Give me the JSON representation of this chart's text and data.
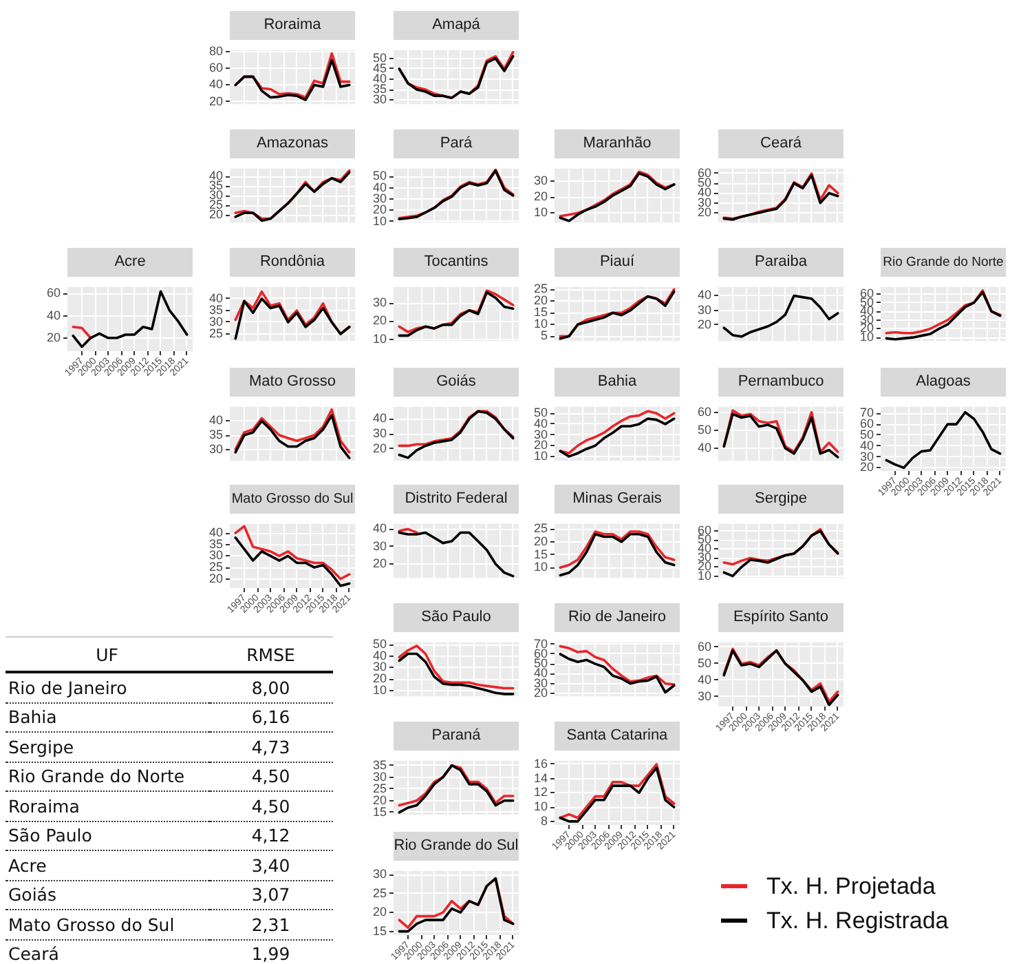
{
  "chart_data": [
    {
      "type": "line",
      "title": "Roraima",
      "x": [
        1995,
        1997,
        1999,
        2001,
        2003,
        2005,
        2007,
        2009,
        2011,
        2013,
        2015,
        2017,
        2019,
        2021
      ],
      "xlim": [
        1993.7,
        2022.3
      ],
      "xticks": [
        1997,
        2000,
        2003,
        2006,
        2009,
        2012,
        2015,
        2018,
        2021
      ],
      "ylim": [
        17,
        82
      ],
      "yticks": [
        20,
        40,
        60,
        80
      ],
      "grid": true,
      "tick_labels": "y",
      "series": [
        {
          "color": "#e8262a",
          "values": [
            40,
            50,
            50,
            36,
            35,
            29,
            30,
            29,
            25,
            45,
            42,
            78,
            44,
            44
          ]
        },
        {
          "color": "#000000",
          "values": [
            40,
            50,
            50,
            33,
            25,
            26,
            28,
            27,
            22,
            40,
            38,
            70,
            38,
            40
          ]
        }
      ]
    },
    {
      "type": "line",
      "title": "Amapá",
      "x": [
        1995,
        1997,
        1999,
        2001,
        2003,
        2005,
        2007,
        2009,
        2011,
        2013,
        2015,
        2017,
        2019,
        2021
      ],
      "xlim": [
        1993.7,
        2022.3
      ],
      "xticks": [
        1997,
        2000,
        2003,
        2006,
        2009,
        2012,
        2015,
        2018,
        2021
      ],
      "ylim": [
        28,
        54
      ],
      "yticks": [
        30,
        35,
        40,
        45,
        50
      ],
      "grid": true,
      "tick_labels": "y",
      "series": [
        {
          "color": "#e8262a",
          "values": [
            45,
            38,
            36,
            35,
            33,
            32,
            31,
            34,
            33,
            37,
            49,
            51,
            45,
            53
          ]
        },
        {
          "color": "#000000",
          "values": [
            45,
            38,
            35,
            34,
            32,
            32,
            31,
            34,
            33,
            36,
            48,
            50,
            44,
            51
          ]
        }
      ]
    },
    {
      "type": "line",
      "title": "Amazonas",
      "x": [
        1995,
        1997,
        1999,
        2001,
        2003,
        2005,
        2007,
        2009,
        2011,
        2013,
        2015,
        2017,
        2019,
        2021
      ],
      "xlim": [
        1993.7,
        2022.3
      ],
      "xticks": [
        1997,
        2000,
        2003,
        2006,
        2009,
        2012,
        2015,
        2018,
        2021
      ],
      "ylim": [
        16,
        44
      ],
      "yticks": [
        20,
        25,
        30,
        35,
        40
      ],
      "grid": true,
      "tick_labels": "y",
      "series": [
        {
          "color": "#e8262a",
          "values": [
            21,
            22,
            21,
            18,
            18,
            22,
            26,
            31,
            37,
            32,
            37,
            39,
            38,
            43
          ]
        },
        {
          "color": "#000000",
          "values": [
            19,
            21,
            21,
            17,
            18,
            22,
            26,
            31,
            36,
            32,
            36,
            39,
            37,
            42
          ]
        }
      ]
    },
    {
      "type": "line",
      "title": "Pará",
      "x": [
        1995,
        1997,
        1999,
        2001,
        2003,
        2005,
        2007,
        2009,
        2011,
        2013,
        2015,
        2017,
        2019,
        2021
      ],
      "xlim": [
        1993.7,
        2022.3
      ],
      "xticks": [
        1997,
        2000,
        2003,
        2006,
        2009,
        2012,
        2015,
        2018,
        2021
      ],
      "ylim": [
        9,
        57
      ],
      "yticks": [
        10,
        20,
        30,
        40,
        50
      ],
      "grid": true,
      "tick_labels": "y",
      "series": [
        {
          "color": "#e8262a",
          "values": [
            13,
            14,
            15,
            18,
            22,
            29,
            33,
            41,
            45,
            43,
            45,
            56,
            40,
            34
          ]
        },
        {
          "color": "#000000",
          "values": [
            12,
            13,
            14,
            18,
            22,
            28,
            32,
            40,
            44,
            42,
            44,
            55,
            38,
            33
          ]
        }
      ]
    },
    {
      "type": "line",
      "title": "Maranhão",
      "x": [
        1995,
        1997,
        1999,
        2001,
        2003,
        2005,
        2007,
        2009,
        2011,
        2013,
        2015,
        2017,
        2019,
        2021
      ],
      "xlim": [
        1993.7,
        2022.3
      ],
      "xticks": [
        1997,
        2000,
        2003,
        2006,
        2009,
        2012,
        2015,
        2018,
        2021
      ],
      "ylim": [
        4,
        38
      ],
      "yticks": [
        10,
        20,
        30
      ],
      "grid": true,
      "tick_labels": "y",
      "series": [
        {
          "color": "#e8262a",
          "values": [
            8,
            9,
            10,
            12,
            15,
            18,
            22,
            25,
            28,
            36,
            34,
            29,
            26,
            28
          ]
        },
        {
          "color": "#000000",
          "values": [
            7,
            5,
            9,
            12,
            14,
            17,
            21,
            24,
            27,
            35,
            33,
            28,
            25,
            28
          ]
        }
      ]
    },
    {
      "type": "line",
      "title": "Ceará",
      "x": [
        1995,
        1997,
        1999,
        2001,
        2003,
        2005,
        2007,
        2009,
        2011,
        2013,
        2015,
        2017,
        2019,
        2021
      ],
      "xlim": [
        1993.7,
        2022.3
      ],
      "xticks": [
        1997,
        2000,
        2003,
        2006,
        2009,
        2012,
        2015,
        2018,
        2021
      ],
      "ylim": [
        10,
        65
      ],
      "yticks": [
        20,
        30,
        40,
        50,
        60
      ],
      "grid": true,
      "tick_labels": "y",
      "series": [
        {
          "color": "#e8262a",
          "values": [
            15,
            14,
            16,
            18,
            21,
            23,
            25,
            34,
            51,
            46,
            60,
            33,
            48,
            40
          ]
        },
        {
          "color": "#000000",
          "values": [
            14,
            13,
            16,
            18,
            20,
            22,
            24,
            33,
            50,
            45,
            58,
            30,
            40,
            37
          ]
        }
      ]
    },
    {
      "type": "line",
      "title": "Acre",
      "x": [
        1995,
        1997,
        1999,
        2001,
        2003,
        2005,
        2007,
        2009,
        2011,
        2013,
        2015,
        2017,
        2019,
        2021
      ],
      "xlim": [
        1993.7,
        2022.3
      ],
      "xticks": [
        1997,
        2000,
        2003,
        2006,
        2009,
        2012,
        2015,
        2018,
        2021
      ],
      "ylim": [
        8,
        66
      ],
      "yticks": [
        20,
        40,
        60
      ],
      "grid": true,
      "series": [
        {
          "color": "#e8262a",
          "values": [
            30,
            29,
            20,
            null,
            null,
            null,
            null,
            null,
            null,
            null,
            null,
            null,
            null,
            null
          ]
        },
        {
          "color": "#000000",
          "values": [
            22,
            12,
            20,
            24,
            20,
            20,
            23,
            23,
            30,
            28,
            62,
            45,
            35,
            23
          ]
        }
      ]
    },
    {
      "type": "line",
      "title": "Rondônia",
      "x": [
        1995,
        1997,
        1999,
        2001,
        2003,
        2005,
        2007,
        2009,
        2011,
        2013,
        2015,
        2017,
        2019,
        2021
      ],
      "xlim": [
        1993.7,
        2022.3
      ],
      "xticks": [
        1997,
        2000,
        2003,
        2006,
        2009,
        2012,
        2015,
        2018,
        2021
      ],
      "ylim": [
        22,
        45
      ],
      "yticks": [
        25,
        30,
        35,
        40
      ],
      "grid": true,
      "tick_labels": "y",
      "series": [
        {
          "color": "#e8262a",
          "values": [
            31,
            39,
            36,
            43,
            37,
            38,
            31,
            35,
            29,
            32,
            38,
            30,
            25,
            28
          ]
        },
        {
          "color": "#000000",
          "values": [
            23,
            39,
            34,
            40,
            36,
            37,
            30,
            34,
            28,
            31,
            36,
            30,
            25,
            28
          ]
        }
      ]
    },
    {
      "type": "line",
      "title": "Tocantins",
      "x": [
        1995,
        1997,
        1999,
        2001,
        2003,
        2005,
        2007,
        2009,
        2011,
        2013,
        2015,
        2017,
        2019,
        2021
      ],
      "xlim": [
        1993.7,
        2022.3
      ],
      "xticks": [
        1997,
        2000,
        2003,
        2006,
        2009,
        2012,
        2015,
        2018,
        2021
      ],
      "ylim": [
        9,
        39
      ],
      "yticks": [
        10,
        20,
        30
      ],
      "grid": true,
      "tick_labels": "y",
      "series": [
        {
          "color": "#e8262a",
          "values": [
            17,
            14,
            16,
            17,
            16,
            18,
            19,
            24,
            26,
            25,
            37,
            35,
            32,
            29
          ]
        },
        {
          "color": "#000000",
          "values": [
            12,
            12,
            15,
            17,
            16,
            18,
            18,
            23,
            26,
            24,
            36,
            33,
            28,
            27
          ]
        }
      ]
    },
    {
      "type": "line",
      "title": "Piauí",
      "x": [
        1995,
        1997,
        1999,
        2001,
        2003,
        2005,
        2007,
        2009,
        2011,
        2013,
        2015,
        2017,
        2019,
        2021
      ],
      "xlim": [
        1993.7,
        2022.3
      ],
      "xticks": [
        1997,
        2000,
        2003,
        2006,
        2009,
        2012,
        2015,
        2018,
        2021
      ],
      "ylim": [
        3,
        26
      ],
      "yticks": [
        5,
        10,
        15,
        20,
        25
      ],
      "grid": true,
      "tick_labels": "y",
      "series": [
        {
          "color": "#e8262a",
          "values": [
            5,
            5,
            10,
            12,
            13,
            14,
            15,
            15,
            17,
            20,
            22,
            21,
            19,
            25
          ]
        },
        {
          "color": "#000000",
          "values": [
            4,
            5,
            10,
            11,
            12,
            13,
            15,
            14,
            16,
            19,
            22,
            21,
            18,
            24
          ]
        }
      ]
    },
    {
      "type": "line",
      "title": "Paraiba",
      "x": [
        1995,
        1997,
        1999,
        2001,
        2003,
        2005,
        2007,
        2009,
        2011,
        2013,
        2015,
        2017,
        2019,
        2021
      ],
      "xlim": [
        1993.7,
        2022.3
      ],
      "xticks": [
        1997,
        2000,
        2003,
        2006,
        2009,
        2012,
        2015,
        2018,
        2021
      ],
      "ylim": [
        9,
        46
      ],
      "yticks": [
        20,
        30,
        40
      ],
      "grid": true,
      "tick_labels": "y",
      "series": [
        {
          "color": "#000000",
          "values": [
            18,
            13,
            12,
            15,
            17,
            19,
            22,
            27,
            40,
            39,
            38,
            32,
            24,
            28
          ]
        }
      ]
    },
    {
      "type": "line",
      "title": "Rio Grande do Norte",
      "x": [
        1995,
        1997,
        1999,
        2001,
        2003,
        2005,
        2007,
        2009,
        2011,
        2013,
        2015,
        2017,
        2019,
        2021
      ],
      "xlim": [
        1993.7,
        2022.3
      ],
      "xticks": [
        1997,
        2000,
        2003,
        2006,
        2009,
        2012,
        2015,
        2018,
        2021
      ],
      "ylim": [
        6,
        68
      ],
      "yticks": [
        10,
        20,
        30,
        40,
        50,
        60
      ],
      "grid": true,
      "tick_labels": "y",
      "series": [
        {
          "color": "#e8262a",
          "values": [
            15,
            16,
            15,
            15,
            17,
            20,
            25,
            30,
            38,
            47,
            50,
            64,
            40,
            36
          ]
        },
        {
          "color": "#000000",
          "values": [
            9,
            8,
            9,
            10,
            12,
            14,
            20,
            25,
            35,
            45,
            50,
            62,
            40,
            35
          ]
        }
      ]
    },
    {
      "type": "line",
      "title": "Mato Grosso",
      "x": [
        1995,
        1997,
        1999,
        2001,
        2003,
        2005,
        2007,
        2009,
        2011,
        2013,
        2015,
        2017,
        2019,
        2021
      ],
      "xlim": [
        1993.7,
        2022.3
      ],
      "xticks": [
        1997,
        2000,
        2003,
        2006,
        2009,
        2012,
        2015,
        2018,
        2021
      ],
      "ylim": [
        26,
        45
      ],
      "yticks": [
        30,
        35,
        40
      ],
      "grid": true,
      "tick_labels": "y",
      "series": [
        {
          "color": "#e8262a",
          "values": [
            30,
            36,
            37,
            41,
            38,
            35,
            34,
            33,
            34,
            35,
            38,
            44,
            33,
            29
          ]
        },
        {
          "color": "#000000",
          "values": [
            29,
            35,
            36,
            40,
            37,
            33,
            31,
            31,
            33,
            34,
            37,
            42,
            31,
            27
          ]
        }
      ]
    },
    {
      "type": "line",
      "title": "Goiás",
      "x": [
        1995,
        1997,
        1999,
        2001,
        2003,
        2005,
        2007,
        2009,
        2011,
        2013,
        2015,
        2017,
        2019,
        2021
      ],
      "xlim": [
        1993.7,
        2022.3
      ],
      "xticks": [
        1997,
        2000,
        2003,
        2006,
        2009,
        2012,
        2015,
        2018,
        2021
      ],
      "ylim": [
        12,
        48
      ],
      "yticks": [
        20,
        30,
        40
      ],
      "grid": true,
      "tick_labels": "y",
      "series": [
        {
          "color": "#e8262a",
          "values": [
            22,
            22,
            23,
            23,
            25,
            26,
            27,
            32,
            41,
            45,
            45,
            41,
            33,
            28
          ]
        },
        {
          "color": "#000000",
          "values": [
            16,
            14,
            19,
            22,
            24,
            25,
            26,
            31,
            40,
            45,
            44,
            40,
            33,
            27
          ]
        }
      ]
    },
    {
      "type": "line",
      "title": "Bahia",
      "x": [
        1995,
        1997,
        1999,
        2001,
        2003,
        2005,
        2007,
        2009,
        2011,
        2013,
        2015,
        2017,
        2019,
        2021
      ],
      "xlim": [
        1993.7,
        2022.3
      ],
      "xticks": [
        1997,
        2000,
        2003,
        2006,
        2009,
        2012,
        2015,
        2018,
        2021
      ],
      "ylim": [
        6,
        56
      ],
      "yticks": [
        10,
        20,
        30,
        40,
        50
      ],
      "grid": true,
      "tick_labels": "y",
      "series": [
        {
          "color": "#e8262a",
          "values": [
            15,
            13,
            20,
            25,
            28,
            32,
            38,
            43,
            47,
            48,
            52,
            50,
            45,
            50
          ]
        },
        {
          "color": "#000000",
          "values": [
            15,
            10,
            13,
            17,
            20,
            27,
            32,
            38,
            38,
            40,
            45,
            44,
            40,
            45
          ]
        }
      ]
    },
    {
      "type": "line",
      "title": "Pernambuco",
      "x": [
        1995,
        1997,
        1999,
        2001,
        2003,
        2005,
        2007,
        2009,
        2011,
        2013,
        2015,
        2017,
        2019,
        2021
      ],
      "xlim": [
        1993.7,
        2022.3
      ],
      "xticks": [
        1997,
        2000,
        2003,
        2006,
        2009,
        2012,
        2015,
        2018,
        2021
      ],
      "ylim": [
        33,
        63
      ],
      "yticks": [
        40,
        50,
        60
      ],
      "grid": true,
      "tick_labels": "y",
      "series": [
        {
          "color": "#e8262a",
          "values": [
            41,
            61,
            58,
            59,
            55,
            54,
            55,
            41,
            38,
            46,
            60,
            38,
            43,
            38
          ]
        },
        {
          "color": "#000000",
          "values": [
            41,
            59,
            57,
            58,
            52,
            53,
            51,
            40,
            37,
            45,
            57,
            37,
            39,
            35
          ]
        }
      ]
    },
    {
      "type": "line",
      "title": "Alagoas",
      "x": [
        1995,
        1997,
        1999,
        2001,
        2003,
        2005,
        2007,
        2009,
        2011,
        2013,
        2015,
        2017,
        2019,
        2021
      ],
      "xlim": [
        1993.7,
        2022.3
      ],
      "xticks": [
        1997,
        2000,
        2003,
        2006,
        2009,
        2012,
        2015,
        2018,
        2021
      ],
      "ylim": [
        17,
        76
      ],
      "yticks": [
        20,
        30,
        40,
        50,
        60,
        70
      ],
      "grid": true,
      "series": [
        {
          "color": "#000000",
          "values": [
            27,
            23,
            20,
            29,
            35,
            36,
            48,
            60,
            60,
            71,
            65,
            53,
            37,
            33
          ]
        }
      ]
    },
    {
      "type": "line",
      "title": "Mato Grosso do Sul",
      "x": [
        1995,
        1997,
        1999,
        2001,
        2003,
        2005,
        2007,
        2009,
        2011,
        2013,
        2015,
        2017,
        2019,
        2021
      ],
      "xlim": [
        1993.7,
        2022.3
      ],
      "xticks": [
        1997,
        2000,
        2003,
        2006,
        2009,
        2012,
        2015,
        2018,
        2021
      ],
      "ylim": [
        16,
        44
      ],
      "yticks": [
        20,
        25,
        30,
        35,
        40
      ],
      "grid": true,
      "series": [
        {
          "color": "#e8262a",
          "values": [
            40,
            43,
            34,
            33,
            32,
            30,
            32,
            29,
            28,
            27,
            27,
            24,
            20,
            22
          ]
        },
        {
          "color": "#000000",
          "values": [
            38,
            33,
            28,
            32,
            30,
            28,
            30,
            27,
            27,
            25,
            26,
            22,
            17,
            18
          ]
        }
      ]
    },
    {
      "type": "line",
      "title": "Distrito Federal",
      "x": [
        1995,
        1997,
        1999,
        2001,
        2003,
        2005,
        2007,
        2009,
        2011,
        2013,
        2015,
        2017,
        2019,
        2021
      ],
      "xlim": [
        1993.7,
        2022.3
      ],
      "xticks": [
        1997,
        2000,
        2003,
        2006,
        2009,
        2012,
        2015,
        2018,
        2021
      ],
      "ylim": [
        12,
        43
      ],
      "yticks": [
        20,
        30,
        40
      ],
      "grid": true,
      "tick_labels": "y",
      "series": [
        {
          "color": "#e8262a",
          "values": [
            39,
            40,
            38,
            null,
            null,
            null,
            null,
            null,
            null,
            null,
            null,
            null,
            null,
            null
          ]
        },
        {
          "color": "#000000",
          "values": [
            38,
            37,
            37,
            38,
            35,
            32,
            33,
            38,
            38,
            33,
            28,
            20,
            15,
            13
          ]
        }
      ]
    },
    {
      "type": "line",
      "title": "Minas Gerais",
      "x": [
        1995,
        1997,
        1999,
        2001,
        2003,
        2005,
        2007,
        2009,
        2011,
        2013,
        2015,
        2017,
        2019,
        2021
      ],
      "xlim": [
        1993.7,
        2022.3
      ],
      "xticks": [
        1997,
        2000,
        2003,
        2006,
        2009,
        2012,
        2015,
        2018,
        2021
      ],
      "ylim": [
        6,
        27
      ],
      "yticks": [
        10,
        15,
        20,
        25
      ],
      "grid": true,
      "tick_labels": "y",
      "series": [
        {
          "color": "#e8262a",
          "values": [
            10,
            11,
            13,
            18,
            24,
            23,
            23,
            21,
            24,
            24,
            23,
            18,
            14,
            13
          ]
        },
        {
          "color": "#000000",
          "values": [
            7,
            8,
            11,
            16,
            23,
            22,
            22,
            20,
            23,
            23,
            22,
            16,
            12,
            11
          ]
        }
      ]
    },
    {
      "type": "line",
      "title": "Sergipe",
      "x": [
        1995,
        1997,
        1999,
        2001,
        2003,
        2005,
        2007,
        2009,
        2011,
        2013,
        2015,
        2017,
        2019,
        2021
      ],
      "xlim": [
        1993.7,
        2022.3
      ],
      "xticks": [
        1997,
        2000,
        2003,
        2006,
        2009,
        2012,
        2015,
        2018,
        2021
      ],
      "ylim": [
        8,
        68
      ],
      "yticks": [
        10,
        20,
        30,
        40,
        50,
        60
      ],
      "grid": true,
      "tick_labels": "y",
      "series": [
        {
          "color": "#e8262a",
          "values": [
            25,
            23,
            27,
            30,
            28,
            27,
            30,
            33,
            35,
            43,
            55,
            62,
            45,
            36
          ]
        },
        {
          "color": "#000000",
          "values": [
            14,
            10,
            20,
            28,
            27,
            25,
            29,
            33,
            35,
            43,
            55,
            60,
            45,
            35
          ]
        }
      ]
    },
    {
      "type": "line",
      "title": "São Paulo",
      "x": [
        1995,
        1997,
        1999,
        2001,
        2003,
        2005,
        2007,
        2009,
        2011,
        2013,
        2015,
        2017,
        2019,
        2021
      ],
      "xlim": [
        1993.7,
        2022.3
      ],
      "xticks": [
        1997,
        2000,
        2003,
        2006,
        2009,
        2012,
        2015,
        2018,
        2021
      ],
      "ylim": [
        5,
        52
      ],
      "yticks": [
        10,
        20,
        30,
        40,
        50
      ],
      "grid": true,
      "tick_labels": "y",
      "series": [
        {
          "color": "#e8262a",
          "values": [
            39,
            45,
            49,
            42,
            27,
            18,
            17,
            17,
            17,
            15,
            14,
            13,
            12,
            12
          ]
        },
        {
          "color": "#000000",
          "values": [
            36,
            42,
            42,
            35,
            22,
            16,
            15,
            15,
            14,
            12,
            10,
            8,
            7,
            7
          ]
        }
      ]
    },
    {
      "type": "line",
      "title": "Rio de Janeiro",
      "x": [
        1995,
        1997,
        1999,
        2001,
        2003,
        2005,
        2007,
        2009,
        2011,
        2013,
        2015,
        2017,
        2019,
        2021
      ],
      "xlim": [
        1993.7,
        2022.3
      ],
      "xticks": [
        1997,
        2000,
        2003,
        2006,
        2009,
        2012,
        2015,
        2018,
        2021
      ],
      "ylim": [
        17,
        72
      ],
      "yticks": [
        20,
        30,
        40,
        50,
        60,
        70
      ],
      "grid": true,
      "tick_labels": "y",
      "series": [
        {
          "color": "#e8262a",
          "values": [
            68,
            66,
            62,
            63,
            57,
            54,
            45,
            38,
            32,
            33,
            36,
            38,
            30,
            29
          ]
        },
        {
          "color": "#000000",
          "values": [
            60,
            55,
            52,
            54,
            50,
            47,
            38,
            35,
            30,
            32,
            33,
            37,
            21,
            28
          ]
        }
      ]
    },
    {
      "type": "line",
      "title": "Espírito Santo",
      "x": [
        1995,
        1997,
        1999,
        2001,
        2003,
        2005,
        2007,
        2009,
        2011,
        2013,
        2015,
        2017,
        2019,
        2021
      ],
      "xlim": [
        1993.7,
        2022.3
      ],
      "xticks": [
        1997,
        2000,
        2003,
        2006,
        2009,
        2012,
        2015,
        2018,
        2021
      ],
      "ylim": [
        24,
        63
      ],
      "yticks": [
        30,
        40,
        50,
        60
      ],
      "grid": true,
      "series": [
        {
          "color": "#e8262a",
          "values": [
            44,
            59,
            50,
            51,
            49,
            54,
            58,
            50,
            46,
            40,
            34,
            38,
            27,
            33
          ]
        },
        {
          "color": "#000000",
          "values": [
            43,
            58,
            49,
            50,
            48,
            53,
            58,
            50,
            45,
            40,
            33,
            36,
            25,
            31
          ]
        }
      ]
    },
    {
      "type": "line",
      "title": "Paraná",
      "x": [
        1995,
        1997,
        1999,
        2001,
        2003,
        2005,
        2007,
        2009,
        2011,
        2013,
        2015,
        2017,
        2019,
        2021
      ],
      "xlim": [
        1993.7,
        2022.3
      ],
      "xticks": [
        1997,
        2000,
        2003,
        2006,
        2009,
        2012,
        2015,
        2018,
        2021
      ],
      "ylim": [
        14,
        37
      ],
      "yticks": [
        15,
        20,
        25,
        30,
        35
      ],
      "grid": true,
      "tick_labels": "y",
      "series": [
        {
          "color": "#e8262a",
          "values": [
            18,
            19,
            20,
            23,
            28,
            30,
            35,
            34,
            28,
            28,
            25,
            19,
            22,
            22
          ]
        },
        {
          "color": "#000000",
          "values": [
            15,
            17,
            18,
            22,
            27,
            30,
            35,
            33,
            27,
            27,
            24,
            18,
            20,
            20
          ]
        }
      ]
    },
    {
      "type": "line",
      "title": "Santa Catarina",
      "x": [
        1995,
        1997,
        1999,
        2001,
        2003,
        2005,
        2007,
        2009,
        2011,
        2013,
        2015,
        2017,
        2019,
        2021
      ],
      "xlim": [
        1993.7,
        2022.3
      ],
      "xticks": [
        1997,
        2000,
        2003,
        2006,
        2009,
        2012,
        2015,
        2018,
        2021
      ],
      "ylim": [
        7.5,
        16.5
      ],
      "yticks": [
        8,
        10,
        12,
        14,
        16
      ],
      "grid": true,
      "series": [
        {
          "color": "#e8262a",
          "values": [
            8.5,
            9,
            8.5,
            10,
            11.5,
            11.5,
            13.5,
            13.5,
            13,
            13,
            14.5,
            16,
            11.5,
            10.5
          ]
        },
        {
          "color": "#000000",
          "values": [
            8.5,
            8,
            8,
            9.5,
            11,
            11,
            13,
            13,
            13,
            12,
            14,
            15.5,
            11,
            10
          ]
        }
      ]
    },
    {
      "type": "line",
      "title": "Rio Grande do Sul",
      "x": [
        1995,
        1997,
        1999,
        2001,
        2003,
        2005,
        2007,
        2009,
        2011,
        2013,
        2015,
        2017,
        2019,
        2021
      ],
      "xlim": [
        1993.7,
        2022.3
      ],
      "xticks": [
        1997,
        2000,
        2003,
        2006,
        2009,
        2012,
        2015,
        2018,
        2021
      ],
      "ylim": [
        14,
        31
      ],
      "yticks": [
        15,
        20,
        25,
        30
      ],
      "grid": true,
      "legend": "right",
      "series": [
        {
          "name": "Tx. H. Projetada",
          "color": "#e8262a",
          "values": [
            18,
            16,
            19,
            19,
            19,
            20,
            23,
            21,
            23,
            22,
            27,
            29,
            19,
            17
          ]
        },
        {
          "name": "Tx. H. Registrada",
          "color": "#000000",
          "values": [
            15,
            15,
            17,
            18,
            18,
            18,
            21,
            20,
            23,
            22,
            27,
            29,
            18,
            17
          ]
        }
      ]
    },
    {
      "type": "other",
      "xlabel": "UF",
      "ylabel": "RMSE",
      "categories": [
        "Rio de Janeiro",
        "Bahia",
        "Sergipe",
        "Rio Grande do Norte",
        "Roraima",
        "São Paulo",
        "Acre",
        "Goiás",
        "Mato Grosso do Sul",
        "Ceará"
      ],
      "value_labels": [
        "8,00",
        "6,16",
        "4,73",
        "4,50",
        "4,50",
        "4,12",
        "3,40",
        "3,07",
        "2,31",
        "1,99"
      ]
    }
  ]
}
